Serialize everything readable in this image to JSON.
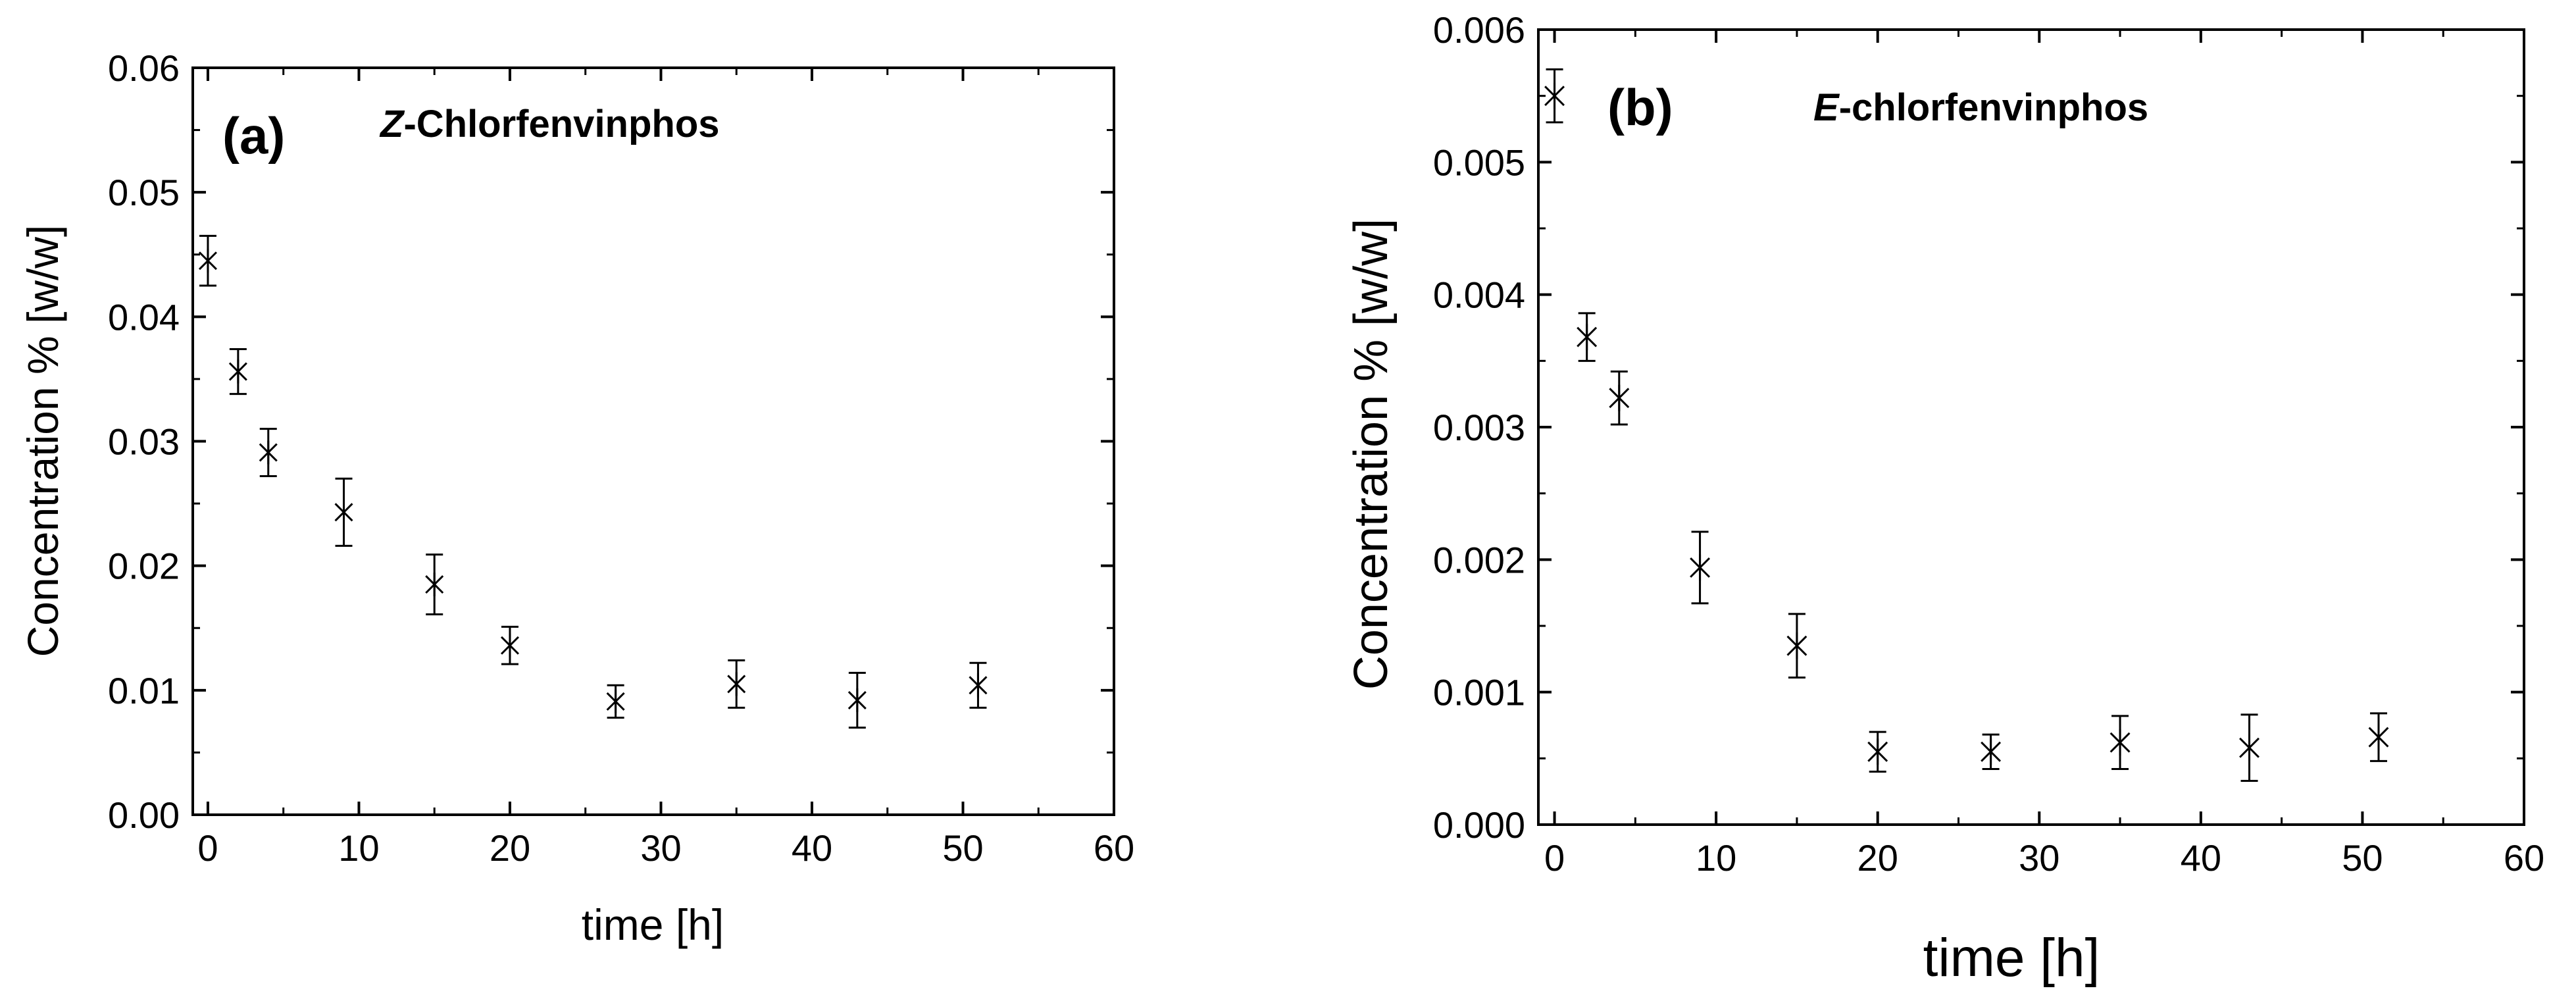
{
  "chart_data": [
    {
      "type": "scatter",
      "panel": "(a)",
      "title_prefix": "Z",
      "title_rest": "-Chlorfenvinphos",
      "xlabel": "time [h]",
      "ylabel": "Concentration % [w/w]",
      "xlim": [
        -1,
        60
      ],
      "ylim": [
        0,
        0.06
      ],
      "xticks": [
        0,
        10,
        20,
        30,
        40,
        50,
        60
      ],
      "xtick_labels": [
        "0",
        "10",
        "20",
        "30",
        "40",
        "50",
        "60"
      ],
      "yticks": [
        0,
        0.01,
        0.02,
        0.03,
        0.04,
        0.05,
        0.06
      ],
      "ytick_labels": [
        "0.00",
        "0.01",
        "0.02",
        "0.03",
        "0.04",
        "0.05",
        "0.06"
      ],
      "x": [
        0,
        2,
        4,
        9,
        15,
        20,
        27,
        35,
        43,
        51
      ],
      "y": [
        0.0445,
        0.0356,
        0.0291,
        0.0243,
        0.0185,
        0.0136,
        0.0091,
        0.0105,
        0.0092,
        0.0104
      ],
      "yerr": [
        0.002,
        0.0018,
        0.0019,
        0.0027,
        0.0024,
        0.0015,
        0.0013,
        0.0019,
        0.0022,
        0.0018
      ],
      "marker": "asterisk",
      "grid": false,
      "color": "#000000"
    },
    {
      "type": "scatter",
      "panel": "(b)",
      "title_prefix": "E",
      "title_rest": "-chlorfenvinphos",
      "xlabel": "time [h]",
      "ylabel": "Concentration % [w/w]",
      "xlim": [
        -1,
        60
      ],
      "ylim": [
        0,
        0.006
      ],
      "xticks": [
        0,
        10,
        20,
        30,
        40,
        50,
        60
      ],
      "xtick_labels": [
        "0",
        "10",
        "20",
        "30",
        "40",
        "50",
        "60"
      ],
      "yticks": [
        0,
        0.001,
        0.002,
        0.003,
        0.004,
        0.005,
        0.006
      ],
      "ytick_labels": [
        "0.000",
        "0.001",
        "0.002",
        "0.003",
        "0.004",
        "0.005",
        "0.006"
      ],
      "x": [
        0,
        2,
        4,
        9,
        15,
        20,
        27,
        35,
        43,
        51
      ],
      "y": [
        0.0055,
        0.00368,
        0.00322,
        0.00194,
        0.00135,
        0.00055,
        0.00055,
        0.00062,
        0.00058,
        0.00066
      ],
      "yerr": [
        0.0002,
        0.00018,
        0.0002,
        0.00027,
        0.00024,
        0.00015,
        0.00013,
        0.0002,
        0.00025,
        0.00018
      ],
      "marker": "asterisk",
      "grid": false,
      "color": "#000000"
    }
  ]
}
